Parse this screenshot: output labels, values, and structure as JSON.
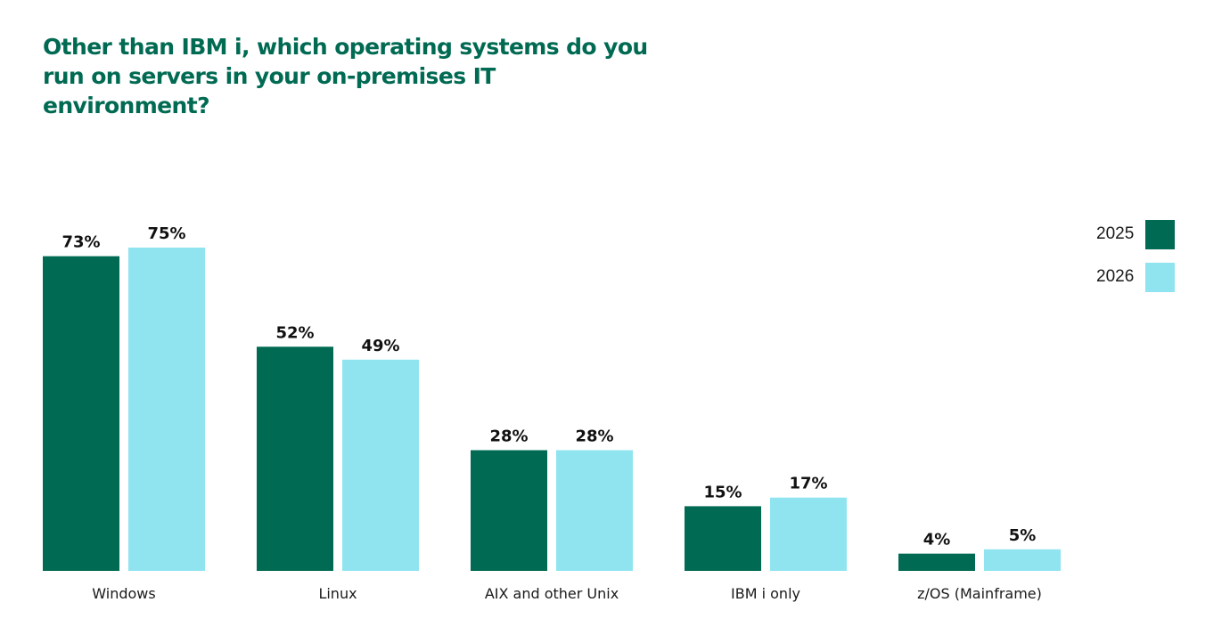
{
  "chart_data": {
    "type": "bar",
    "title": "Other than IBM i, which operating systems do you run on servers in your on-premises IT environment?",
    "xlabel": "",
    "ylabel": "",
    "categories": [
      "Windows",
      "Linux",
      "AIX and other Unix",
      "IBM i only",
      "z/OS (Mainframe)"
    ],
    "series": [
      {
        "name": "2025",
        "color": "#006a52",
        "values": [
          73,
          52,
          28,
          15,
          4
        ]
      },
      {
        "name": "2026",
        "color": "#8fe4f0",
        "values": [
          75,
          49,
          28,
          17,
          5
        ]
      }
    ],
    "value_format": "percent",
    "grid": false,
    "legend": "right"
  }
}
